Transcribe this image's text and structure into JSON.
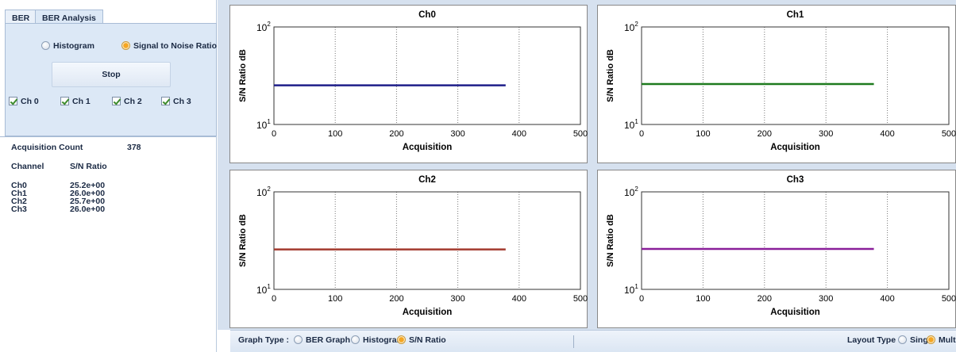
{
  "tabs": [
    {
      "label": "BER",
      "active": false
    },
    {
      "label": "BER Analysis",
      "active": true
    }
  ],
  "mode_options": [
    {
      "label": "Histogram",
      "checked": false
    },
    {
      "label": "Signal to Noise Ratio",
      "checked": true
    }
  ],
  "stop_label": "Stop",
  "channel_checkboxes": [
    {
      "label": "Ch 0",
      "checked": true
    },
    {
      "label": "Ch 1",
      "checked": true
    },
    {
      "label": "Ch 2",
      "checked": true
    },
    {
      "label": "Ch 3",
      "checked": true
    }
  ],
  "stats": {
    "acq_label": "Acquisition Count",
    "acq_value": "378",
    "channel_header": "Channel",
    "ratio_header": "S/N Ratio",
    "rows": [
      {
        "channel": "Ch0",
        "value": "25.2e+00"
      },
      {
        "channel": "Ch1",
        "value": "26.0e+00"
      },
      {
        "channel": "Ch2",
        "value": "25.7e+00"
      },
      {
        "channel": "Ch3",
        "value": "26.0e+00"
      }
    ]
  },
  "chart_data": [
    {
      "type": "line",
      "title": "Ch0",
      "xlabel": "Acquisition",
      "ylabel": "S/N Ratio dB",
      "xlim": [
        0,
        500
      ],
      "ylim": [
        10,
        100
      ],
      "y_scale": "log",
      "xticks": [
        0,
        100,
        200,
        300,
        400,
        500
      ],
      "yticks": [
        10,
        100
      ],
      "ytick_labels": [
        {
          "base": "10",
          "exp": "1"
        },
        {
          "base": "10",
          "exp": "2"
        }
      ],
      "grid": "vertical-dotted",
      "color": "#1f1f8a",
      "series": [
        {
          "x": [
            0,
            378
          ],
          "y": [
            25.2,
            25.2
          ]
        }
      ]
    },
    {
      "type": "line",
      "title": "Ch1",
      "xlabel": "Acquisition",
      "ylabel": "S/N Ratio dB",
      "xlim": [
        0,
        500
      ],
      "ylim": [
        10,
        100
      ],
      "y_scale": "log",
      "xticks": [
        0,
        100,
        200,
        300,
        400,
        500
      ],
      "yticks": [
        10,
        100
      ],
      "ytick_labels": [
        {
          "base": "10",
          "exp": "1"
        },
        {
          "base": "10",
          "exp": "2"
        }
      ],
      "grid": "vertical-dotted",
      "color": "#1e7a1e",
      "series": [
        {
          "x": [
            0,
            378
          ],
          "y": [
            26.0,
            26.0
          ]
        }
      ]
    },
    {
      "type": "line",
      "title": "Ch2",
      "xlabel": "Acquisition",
      "ylabel": "S/N Ratio dB",
      "xlim": [
        0,
        500
      ],
      "ylim": [
        10,
        100
      ],
      "y_scale": "log",
      "xticks": [
        0,
        100,
        200,
        300,
        400,
        500
      ],
      "yticks": [
        10,
        100
      ],
      "ytick_labels": [
        {
          "base": "10",
          "exp": "1"
        },
        {
          "base": "10",
          "exp": "2"
        }
      ],
      "grid": "vertical-dotted",
      "color": "#a33a2e",
      "series": [
        {
          "x": [
            0,
            378
          ],
          "y": [
            25.7,
            25.7
          ]
        }
      ]
    },
    {
      "type": "line",
      "title": "Ch3",
      "xlabel": "Acquisition",
      "ylabel": "S/N Ratio dB",
      "xlim": [
        0,
        500
      ],
      "ylim": [
        10,
        100
      ],
      "y_scale": "log",
      "xticks": [
        0,
        100,
        200,
        300,
        400,
        500
      ],
      "yticks": [
        10,
        100
      ],
      "ytick_labels": [
        {
          "base": "10",
          "exp": "1"
        },
        {
          "base": "10",
          "exp": "2"
        }
      ],
      "grid": "vertical-dotted",
      "color": "#8a1f9a",
      "series": [
        {
          "x": [
            0,
            378
          ],
          "y": [
            26.0,
            26.0
          ]
        }
      ]
    }
  ],
  "bottom_bar": {
    "graph_type_label": "Graph Type :",
    "graph_types": [
      {
        "label": "BER Graph",
        "checked": false
      },
      {
        "label": "Histogram",
        "checked": false
      },
      {
        "label": "S/N Ratio",
        "checked": true
      }
    ],
    "layout_type_label": "Layout Type :",
    "layout_types": [
      {
        "label": "Single",
        "checked": false
      },
      {
        "label": "Multi",
        "checked": true
      }
    ]
  }
}
